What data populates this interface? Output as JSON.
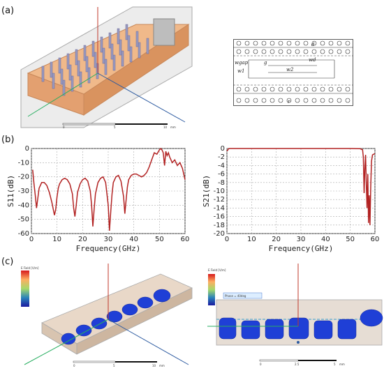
{
  "panels": {
    "a_label": "(a)",
    "b_label": "(b)",
    "c_label": "(c)"
  },
  "schematic": {
    "labels": [
      "wgap",
      "g",
      "w1",
      "w2",
      "wd",
      "d",
      "r"
    ]
  },
  "scale_bars": {
    "a": {
      "ticks": [
        "0",
        "5",
        "10"
      ],
      "unit": "mm"
    },
    "c_left": {
      "ticks": [
        "0",
        "5",
        "10"
      ],
      "unit": "mm"
    },
    "c_right": {
      "ticks": [
        "0",
        "2.5",
        "5"
      ],
      "unit": "mm"
    }
  },
  "field_legend": {
    "title": "E Field [V/m]",
    "phase_text": "Phase = 40deg"
  },
  "chart_data": [
    {
      "type": "line",
      "xlabel": "Frequency(GHz)",
      "ylabel": "S11(dB)",
      "xlim": [
        0,
        60
      ],
      "ylim": [
        -60,
        0
      ],
      "xticks": [
        0,
        10,
        20,
        30,
        40,
        50,
        60
      ],
      "yticks": [
        0,
        -10,
        -20,
        -30,
        -40,
        -50,
        -60
      ],
      "grid": true,
      "series": [
        {
          "color": "#b22222",
          "x": [
            0.5,
            1,
            1.5,
            2,
            2.5,
            3,
            4,
            5,
            6,
            7,
            8,
            9,
            9.5,
            10,
            10.5,
            11,
            12,
            13,
            14,
            15,
            16,
            16.5,
            17,
            17.5,
            18,
            19,
            20,
            21,
            22,
            23,
            23.5,
            24,
            24.5,
            25,
            26,
            27,
            28,
            29,
            30,
            30.5,
            31,
            31.5,
            32,
            33,
            34,
            35,
            36,
            36.5,
            37,
            37.5,
            38,
            39,
            40,
            41,
            42,
            43,
            44,
            45,
            46,
            47,
            48,
            49,
            50,
            50.5,
            51,
            51.5,
            52,
            52.5,
            53,
            53.5,
            54,
            55,
            56,
            57,
            58,
            59,
            60
          ],
          "y": [
            -15,
            -25,
            -33,
            -42,
            -35,
            -28,
            -24,
            -24,
            -26,
            -31,
            -38,
            -47,
            -43,
            -34,
            -28,
            -25,
            -22,
            -21,
            -22,
            -25,
            -32,
            -42,
            -48,
            -40,
            -31,
            -25,
            -22,
            -21,
            -23,
            -30,
            -40,
            -55,
            -43,
            -32,
            -24,
            -21,
            -20,
            -24,
            -40,
            -58,
            -44,
            -32,
            -24,
            -20,
            -19,
            -23,
            -34,
            -46,
            -36,
            -27,
            -22,
            -19,
            -18,
            -18,
            -19,
            -20,
            -19,
            -17,
            -13,
            -8,
            -3,
            -4,
            -1,
            0,
            -1,
            -3,
            -12,
            -2,
            -5,
            -3,
            -6,
            -10,
            -8,
            -12,
            -10,
            -14,
            -22
          ]
        }
      ]
    },
    {
      "type": "line",
      "xlabel": "Frequency(GHz)",
      "ylabel": "S21(dB)",
      "xlim": [
        0,
        60
      ],
      "ylim": [
        -20,
        0
      ],
      "xticks": [
        0,
        10,
        20,
        30,
        40,
        50,
        60
      ],
      "yticks": [
        0,
        -2,
        -4,
        -6,
        -8,
        -10,
        -12,
        -14,
        -16,
        -18,
        -20
      ],
      "grid": true,
      "series": [
        {
          "color": "#b22222",
          "x": [
            0,
            0.3,
            0.6,
            1,
            5,
            10,
            20,
            30,
            40,
            50,
            54,
            55,
            55.3,
            55.6,
            55.9,
            56.2,
            56.5,
            56.8,
            57.1,
            57.4,
            57.7,
            58,
            58.3,
            58.6,
            59,
            60
          ],
          "y": [
            -0.6,
            -0.4,
            -0.1,
            0,
            0,
            0,
            0,
            0,
            0,
            0,
            -0.05,
            -0.3,
            -2,
            -10.5,
            -5,
            -1.5,
            -8,
            -14,
            -6,
            -17.5,
            -11,
            -18,
            -9,
            -3,
            -1.5,
            -1.2
          ]
        }
      ]
    }
  ]
}
